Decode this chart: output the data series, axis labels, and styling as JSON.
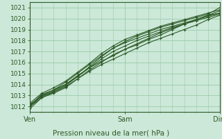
{
  "title": "",
  "xlabel": "Pression niveau de la mer( hPa )",
  "ylabel": "",
  "bg_color": "#cce8d8",
  "grid_color": "#99ccaa",
  "line_color": "#2d5a27",
  "ylim": [
    1011.5,
    1021.5
  ],
  "xlim": [
    0,
    48
  ],
  "xtick_positions": [
    0,
    24,
    48
  ],
  "xtick_labels": [
    "Ven",
    "Sam",
    "Dim"
  ],
  "ytick_positions": [
    1012,
    1013,
    1014,
    1015,
    1016,
    1017,
    1018,
    1019,
    1020,
    1021
  ],
  "lines": [
    {
      "x": [
        0,
        3,
        6,
        9,
        12,
        15,
        18,
        21,
        24,
        27,
        30,
        33,
        36,
        39,
        42,
        45,
        48
      ],
      "y": [
        1012.0,
        1013.0,
        1013.3,
        1013.8,
        1014.5,
        1015.2,
        1015.8,
        1016.3,
        1016.8,
        1017.3,
        1017.8,
        1018.2,
        1018.6,
        1019.0,
        1019.4,
        1019.9,
        1020.3
      ]
    },
    {
      "x": [
        0,
        3,
        6,
        9,
        12,
        15,
        18,
        21,
        24,
        27,
        30,
        33,
        36,
        39,
        42,
        45,
        48
      ],
      "y": [
        1012.1,
        1013.1,
        1013.5,
        1014.0,
        1014.8,
        1015.5,
        1016.1,
        1016.6,
        1017.2,
        1017.6,
        1018.1,
        1018.5,
        1019.0,
        1019.5,
        1019.9,
        1020.3,
        1020.7
      ]
    },
    {
      "x": [
        0,
        3,
        6,
        9,
        12,
        15,
        18,
        21,
        24,
        27,
        30,
        33,
        36,
        39,
        42,
        45,
        48
      ],
      "y": [
        1011.8,
        1012.8,
        1013.2,
        1013.7,
        1014.5,
        1015.3,
        1016.0,
        1016.7,
        1017.2,
        1017.7,
        1018.2,
        1018.7,
        1019.1,
        1019.5,
        1019.9,
        1020.3,
        1020.5
      ]
    },
    {
      "x": [
        0,
        3,
        6,
        9,
        12,
        15,
        18,
        21,
        24,
        27,
        30,
        33,
        36,
        39,
        42,
        45,
        48
      ],
      "y": [
        1012.2,
        1012.9,
        1013.4,
        1014.0,
        1014.7,
        1015.5,
        1016.3,
        1017.0,
        1017.5,
        1018.0,
        1018.4,
        1018.8,
        1019.2,
        1019.5,
        1019.8,
        1020.1,
        1020.4
      ]
    },
    {
      "x": [
        0,
        3,
        6,
        9,
        12,
        15,
        18,
        21,
        24,
        27,
        30,
        33,
        36,
        39,
        42,
        45,
        48
      ],
      "y": [
        1012.0,
        1013.0,
        1013.5,
        1014.2,
        1015.0,
        1015.8,
        1016.6,
        1017.3,
        1017.8,
        1018.2,
        1018.6,
        1019.0,
        1019.3,
        1019.6,
        1019.9,
        1020.2,
        1020.5
      ]
    },
    {
      "x": [
        0,
        3,
        6,
        9,
        12,
        15,
        18,
        21,
        24,
        27,
        30,
        33,
        36,
        39,
        42,
        45,
        48
      ],
      "y": [
        1012.3,
        1013.2,
        1013.7,
        1014.3,
        1015.1,
        1015.9,
        1016.8,
        1017.5,
        1018.1,
        1018.5,
        1018.9,
        1019.3,
        1019.6,
        1019.9,
        1020.2,
        1020.5,
        1020.8
      ]
    },
    {
      "x": [
        0,
        3,
        6,
        9,
        12,
        15,
        18,
        21,
        24,
        27,
        30,
        33,
        36,
        39,
        42,
        45,
        48
      ],
      "y": [
        1012.0,
        1012.8,
        1013.3,
        1013.9,
        1014.7,
        1015.6,
        1016.5,
        1017.3,
        1017.9,
        1018.4,
        1018.8,
        1019.2,
        1019.5,
        1019.8,
        1020.1,
        1020.4,
        1021.0
      ]
    }
  ]
}
